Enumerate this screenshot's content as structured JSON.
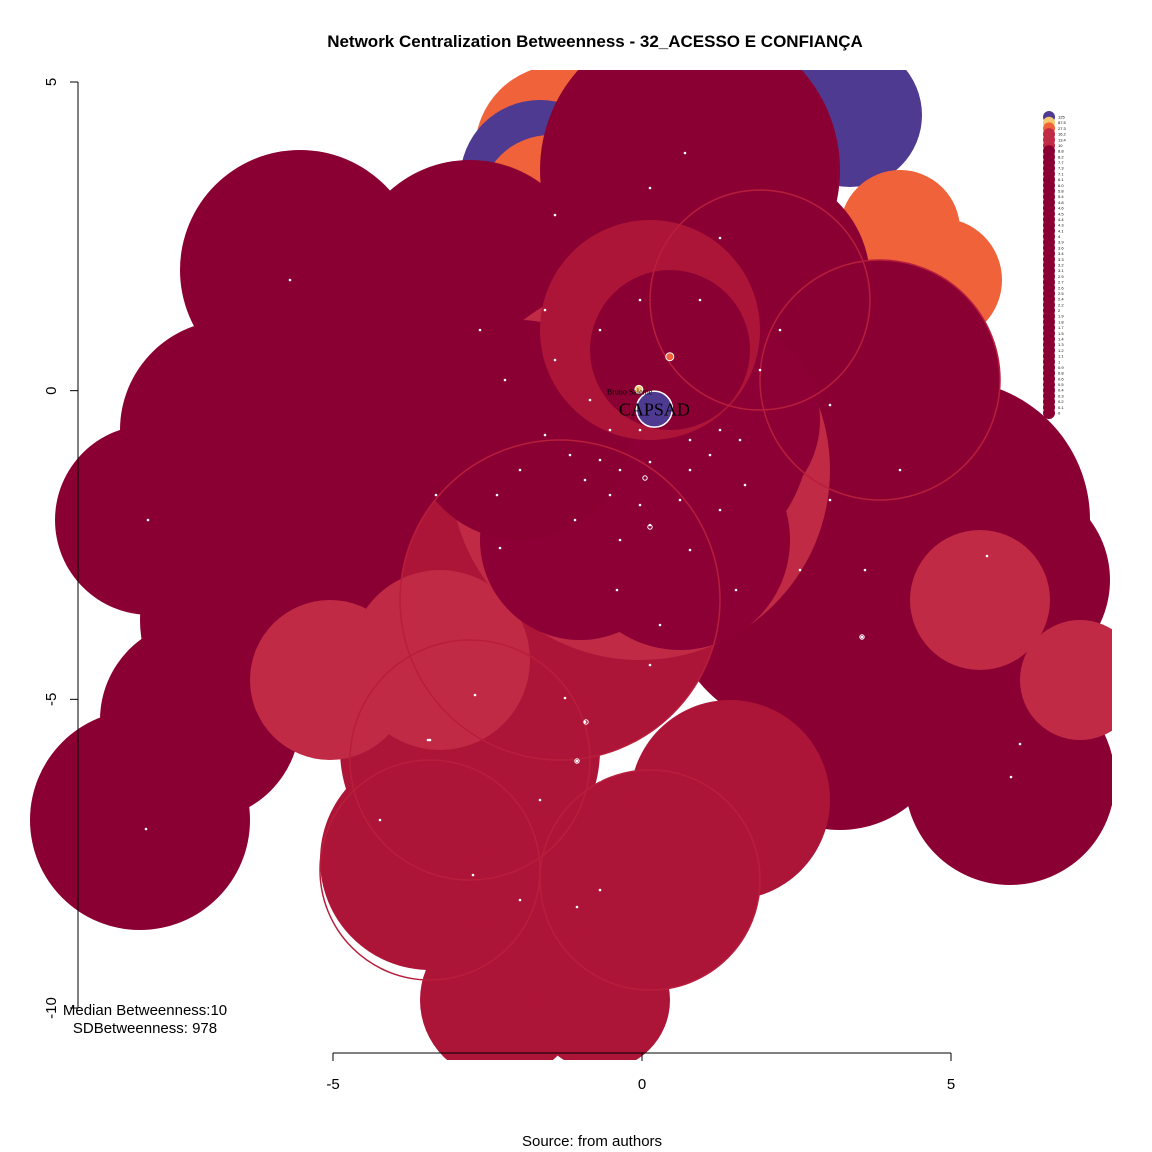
{
  "chart_data": {
    "type": "scatter",
    "title": "Network Centralization Betweenness - 32_ACESSO E CONFIANÇA",
    "xlim": [
      -5,
      5
    ],
    "ylim": [
      -10,
      5
    ],
    "x_ticks": [
      "-5",
      "0",
      "5"
    ],
    "y_ticks": [
      "-10",
      "-5",
      "0",
      "5"
    ],
    "stats": {
      "median": "Median Betweenness:10",
      "sd": "SDBetweenness: 978"
    },
    "caption": "Source: from authors",
    "node_labels": [
      {
        "text": "CAPSAD",
        "x": 0.2,
        "y": -0.3,
        "size": 18
      },
      {
        "text": "Bruno Saleme",
        "x": -0.2,
        "y": -0.02,
        "size": 8
      }
    ],
    "legend": {
      "position": "top-right",
      "entries": [
        "125",
        "87.5",
        "27.3",
        "16.2",
        "13.4",
        "10",
        "8.8",
        "8.2",
        "7.7",
        "7.3",
        "7.1",
        "6.1",
        "6.0",
        "5.8",
        "5.4",
        "4.8",
        "4.6",
        "4.5",
        "4.4",
        "4.3",
        "4.1",
        "4",
        "3.9",
        "3.6",
        "3.4",
        "3.3",
        "3.2",
        "3.1",
        "2.9",
        "2.7",
        "2.6",
        "2.5",
        "2.4",
        "2.2",
        "2",
        "1.9",
        "1.8",
        "1.7",
        "1.5",
        "1.4",
        "1.3",
        "1.2",
        "1.1",
        "1",
        "0.9",
        "0.8",
        "0.6",
        "0.5",
        "0.4",
        "0.3",
        "0.2",
        "0.1",
        "0"
      ]
    },
    "palette": {
      "top": "#4f3a92",
      "second": "#f0623a",
      "third": "#f6c970",
      "mid": "#c02a45",
      "base": "#8b0033",
      "dark": "#8c0035",
      "red": "#ad1538"
    }
  }
}
